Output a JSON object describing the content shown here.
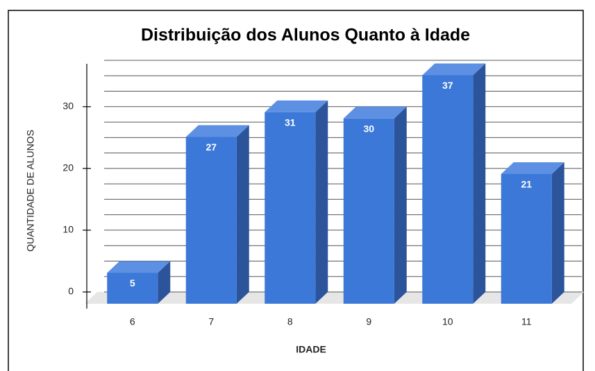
{
  "chart_data": {
    "type": "bar3d",
    "title": "Distribuição dos Alunos Quanto à Idade",
    "xlabel": "IDADE",
    "ylabel": "QUANTIDADE DE ALUNOS",
    "categories": [
      "6",
      "7",
      "8",
      "9",
      "10",
      "11"
    ],
    "values": [
      5,
      27,
      31,
      30,
      37,
      21
    ],
    "color": "#3b78d8",
    "ylim": [
      0,
      37.5
    ],
    "yticks": [
      0,
      10,
      20,
      30
    ],
    "grid": true,
    "grid_step": 2.5
  }
}
